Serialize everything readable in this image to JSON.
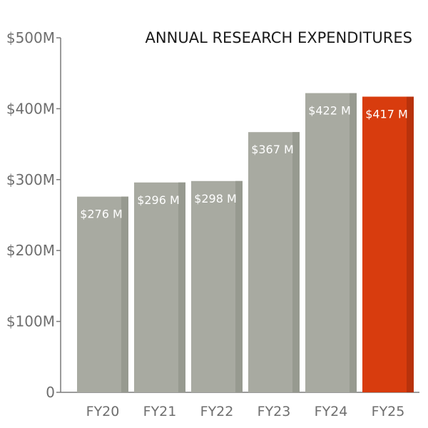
{
  "chart_data": {
    "type": "bar",
    "title": "ANNUAL RESEARCH EXPENDITURES",
    "categories": [
      "FY20",
      "FY21",
      "FY22",
      "FY23",
      "FY24",
      "FY25"
    ],
    "values": [
      276,
      296,
      298,
      367,
      422,
      417
    ],
    "data_labels": [
      "$276 M",
      "$296 M",
      "$298 M",
      "$367 M",
      "$422 M",
      "$417 M"
    ],
    "y_ticks": [
      {
        "value": 0,
        "label": "0"
      },
      {
        "value": 100,
        "label": "$100M"
      },
      {
        "value": 200,
        "label": "$200M"
      },
      {
        "value": 300,
        "label": "$300M"
      },
      {
        "value": 400,
        "label": "$400M"
      },
      {
        "value": 500,
        "label": "$500M"
      }
    ],
    "ylim": [
      0,
      500
    ],
    "xlabel": "",
    "ylabel": "",
    "grid": false,
    "colors": {
      "bar": "#a8aaa1",
      "bar_shade": "#979a90",
      "highlight_bar": "#d83c0e",
      "highlight_shade": "#b8320c",
      "axis": "#7a7a7a"
    },
    "highlight_index": 5
  }
}
